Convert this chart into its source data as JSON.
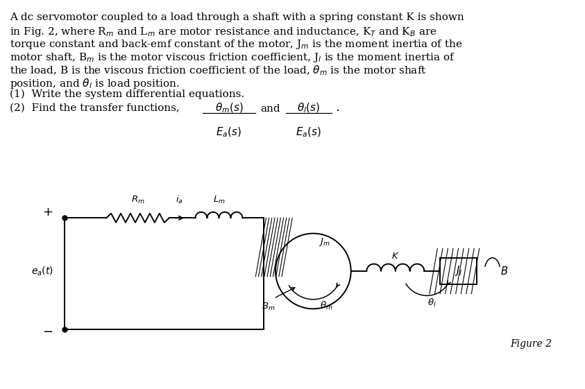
{
  "bg_color": "#ffffff",
  "text_color": "#000000",
  "figure_label": "Figure 2",
  "body_lines": [
    "A dc servomotor coupled to a load through a shaft with a spring constant K is shown",
    "in Fig. 2, where R$_m$ and L$_m$ are motor resistance and inductance, K$_T$ and K$_B$ are",
    "torque constant and back-emf constant of the motor, J$_m$ is the moment inertia of the",
    "motor shaft, B$_m$ is the motor viscous friction coefficient, J$_l$ is the moment inertia of",
    "the load, B is the viscous friction coefficient of the load, $\\theta_m$ is the motor shaft",
    "position, and $\\theta_l$ is load position."
  ],
  "q1": "(1)  Write the system differential equations.",
  "q2_prefix": "(2)  Find the transfer functions,",
  "frac1_num": "$\\theta_m(s)$",
  "frac1_den": "$E_a(s)$",
  "and_text": "and",
  "frac2_num": "$\\theta_l(s)$",
  "frac2_den": "$E_a(s)$",
  "period": ".",
  "body_fontsize": 11,
  "diagram_fontsize": 9.5
}
